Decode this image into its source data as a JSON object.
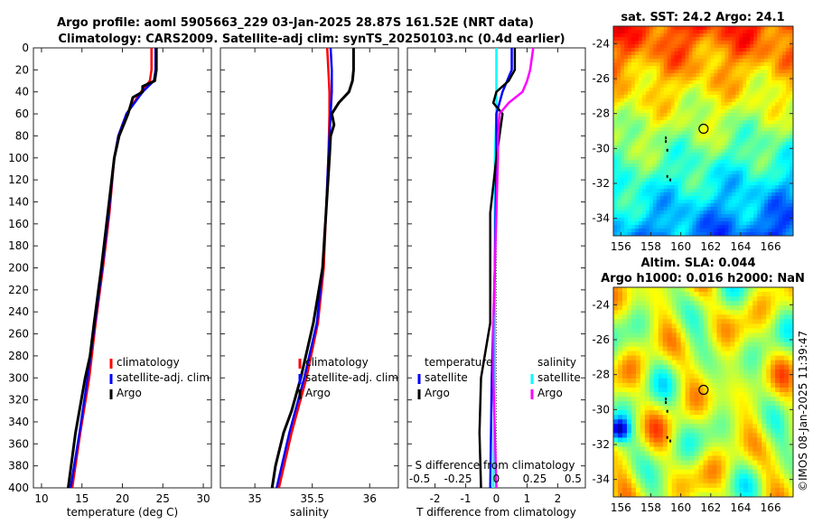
{
  "header": {
    "line1": "Argo profile: aoml 5905663_229 03-Jan-2025 28.87S 161.52E (NRT data)",
    "line2": "Climatology: CARS2009. Satellite-adj clim: synTS_20250103.nc (0.4d earlier)"
  },
  "watermark": "©IMOS 08-Jan-2025 11:39:47",
  "colors": {
    "climatology": "#ff0000",
    "satellite": "#0000ff",
    "argo": "#000000",
    "sat_salinity": "#00ffff",
    "argo_salinity": "#ff00ff"
  },
  "chart_data": [
    {
      "id": "temperature",
      "type": "line",
      "xlabel": "temperature (deg C)",
      "ylabel": "",
      "xlim": [
        9,
        31
      ],
      "ylim": [
        400,
        0
      ],
      "xticks": [
        "10",
        "15",
        "20",
        "25",
        "30"
      ],
      "yticks": [
        "0",
        "20",
        "40",
        "60",
        "80",
        "100",
        "120",
        "140",
        "160",
        "180",
        "200",
        "220",
        "240",
        "260",
        "280",
        "300",
        "320",
        "340",
        "360",
        "380",
        "400"
      ],
      "legend": [
        "climatology",
        "satellite-adj. clim",
        "Argo"
      ],
      "series": [
        {
          "name": "climatology",
          "depth": [
            0,
            10,
            20,
            30,
            40,
            60,
            80,
            100,
            150,
            200,
            250,
            300,
            350,
            400
          ],
          "values": [
            23.6,
            23.6,
            23.6,
            23.4,
            22.3,
            20.5,
            19.5,
            19.0,
            18.4,
            17.6,
            16.7,
            15.9,
            14.8,
            13.8
          ]
        },
        {
          "name": "satellite-adj. clim",
          "depth": [
            0,
            10,
            20,
            30,
            40,
            60,
            80,
            100,
            150,
            200,
            250,
            300,
            350,
            400
          ],
          "values": [
            24.1,
            24.1,
            24.1,
            23.9,
            22.5,
            20.5,
            19.5,
            19.0,
            18.3,
            17.5,
            16.6,
            15.7,
            14.7,
            13.6
          ]
        },
        {
          "name": "Argo",
          "depth": [
            0,
            10,
            20,
            30,
            35,
            40,
            45,
            50,
            60,
            80,
            100,
            150,
            200,
            250,
            280,
            300,
            350,
            400
          ],
          "values": [
            24.2,
            24.2,
            24.2,
            24.0,
            22.5,
            22.5,
            21.3,
            21.1,
            20.7,
            19.6,
            19.0,
            18.2,
            17.4,
            16.5,
            16.0,
            15.4,
            14.2,
            13.3
          ]
        }
      ]
    },
    {
      "id": "salinity",
      "type": "line",
      "xlabel": "salinity",
      "ylabel": "",
      "xlim": [
        34.7,
        36.25
      ],
      "ylim": [
        400,
        0
      ],
      "xticks": [
        "35",
        "35.5",
        "36"
      ],
      "legend": [
        "climatology",
        "satellite-adj. clim",
        "Argo"
      ],
      "series": [
        {
          "name": "climatology",
          "depth": [
            0,
            20,
            40,
            60,
            100,
            150,
            200,
            250,
            300,
            350,
            400
          ],
          "values": [
            35.63,
            35.64,
            35.65,
            35.65,
            35.64,
            35.62,
            35.6,
            35.55,
            35.45,
            35.32,
            35.21
          ]
        },
        {
          "name": "satellite-adj. clim",
          "depth": [
            0,
            20,
            40,
            60,
            100,
            150,
            200,
            250,
            300,
            350,
            400
          ],
          "values": [
            35.66,
            35.67,
            35.67,
            35.66,
            35.64,
            35.62,
            35.59,
            35.54,
            35.43,
            35.3,
            35.19
          ]
        },
        {
          "name": "Argo",
          "depth": [
            0,
            10,
            20,
            30,
            40,
            50,
            60,
            70,
            80,
            100,
            150,
            200,
            250,
            300,
            330,
            350,
            380,
            400
          ],
          "values": [
            35.86,
            35.86,
            35.86,
            35.85,
            35.82,
            35.73,
            35.67,
            35.69,
            35.66,
            35.65,
            35.62,
            35.59,
            35.51,
            35.4,
            35.32,
            35.25,
            35.18,
            35.15
          ]
        }
      ]
    },
    {
      "id": "differences",
      "type": "line",
      "xlabel": "T difference from climatology",
      "xlabel2": "S difference from climatology",
      "xlim": [
        -2.9,
        2.9
      ],
      "ylim": [
        400,
        0
      ],
      "xticks": [
        "-2",
        "-1",
        "0",
        "1",
        "2"
      ],
      "xticks2": [
        "-0.5",
        "-0.25",
        "0",
        "0.25",
        "0.5"
      ],
      "legend_temperature_title": "temperature",
      "legend_salinity_title": "salinity",
      "legend_temperature": [
        "satellite",
        "Argo"
      ],
      "legend_salinity": [
        "satellite",
        "Argo"
      ],
      "series": [
        {
          "name": "T satellite",
          "depth": [
            0,
            20,
            40,
            60,
            100,
            200,
            300,
            400
          ],
          "values": [
            0.5,
            0.5,
            0.2,
            0.0,
            0.0,
            -0.05,
            -0.15,
            -0.2
          ]
        },
        {
          "name": "T Argo",
          "depth": [
            0,
            20,
            30,
            40,
            50,
            60,
            80,
            100,
            150,
            200,
            250,
            300,
            350,
            400
          ],
          "values": [
            0.6,
            0.6,
            0.4,
            0.0,
            -0.1,
            0.2,
            0.1,
            0.0,
            -0.2,
            -0.2,
            -0.2,
            -0.5,
            -0.55,
            -0.5
          ]
        },
        {
          "name": "S satellite",
          "depth": [
            0,
            20,
            40,
            60,
            100,
            200,
            300,
            400
          ],
          "values": [
            0.0,
            0.0,
            0.0,
            0.0,
            -0.01,
            -0.01,
            -0.01,
            -0.02
          ]
        },
        {
          "name": "S Argo",
          "depth": [
            0,
            10,
            20,
            30,
            40,
            50,
            60,
            80,
            100,
            150,
            200,
            250,
            300,
            350,
            400
          ],
          "values": [
            0.24,
            0.23,
            0.22,
            0.2,
            0.17,
            0.08,
            0.02,
            0.01,
            0.01,
            0.0,
            -0.01,
            -0.02,
            -0.02,
            -0.01,
            0.0
          ]
        }
      ]
    },
    {
      "id": "sst_map",
      "type": "heatmap",
      "title": "sat. SST: 24.2 Argo: 24.1",
      "xlim": [
        155.5,
        167.5
      ],
      "ylim": [
        -35,
        -23
      ],
      "xticks": [
        "156",
        "158",
        "160",
        "162",
        "164",
        "166"
      ],
      "yticks": [
        "-24",
        "-26",
        "-28",
        "-30",
        "-32",
        "-34"
      ],
      "marker": {
        "lon": 161.52,
        "lat": -28.87
      }
    },
    {
      "id": "sla_map",
      "type": "heatmap",
      "title": "Altim. SLA: 0.044",
      "subtitle": "Argo h1000: 0.016 h2000: NaN",
      "xlim": [
        155.5,
        167.5
      ],
      "ylim": [
        -35,
        -23
      ],
      "xticks": [
        "156",
        "158",
        "160",
        "162",
        "164",
        "166"
      ],
      "yticks": [
        "-24",
        "-26",
        "-28",
        "-30",
        "-32",
        "-34"
      ],
      "marker": {
        "lon": 161.52,
        "lat": -28.87
      }
    }
  ]
}
